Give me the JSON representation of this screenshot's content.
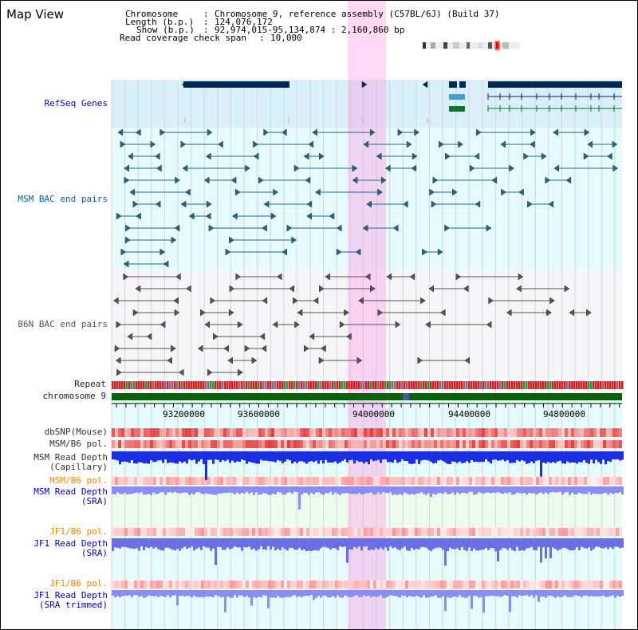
{
  "title": "Map View",
  "info": {
    "chromosome_label": "Chromosome",
    "chromosome_value": "Chromosome 9, reference assembly (C57BL/6J) (Build 37)",
    "length_label": "Length (b.p.)",
    "length_value": "124,076,172",
    "show_label": "Show (b.p.)",
    "show_value": "92,974,015-95,134,874 : 2,160,860 bp",
    "coverage_label": "Read coverage check span",
    "coverage_value": "10,000"
  },
  "tracks": {
    "refseq": "RefSeq Genes",
    "msm_bac": "MSM BAC end pairs",
    "b6n_bac": "B6N BAC end pairs",
    "repeat": "Repeat",
    "chromosome": "chromosome 9",
    "dbsnp": "dbSNP(Mouse)",
    "msm_b6_pol": "MSM/B6 pol.",
    "msm_cap_1": "MSM Read Depth",
    "msm_cap_2": "(Capillary)",
    "msm_b6_pol_sra": "MSM/B6 pol.",
    "msm_sra_1": "MSM Read Depth",
    "msm_sra_2": "(SRA)",
    "jf1_b6_pol": "JF1/B6 pol.",
    "jf1_sra_1": "JF1 Read Depth",
    "jf1_sra_2": "(SRA)",
    "jf1_b6_pol_trim": "JF1/B6 pol.",
    "jf1_trim_1": "JF1 Read Depth",
    "jf1_trim_2": "(SRA trimmed)"
  },
  "axis": {
    "ticks": [
      "93200000",
      "93600000",
      "94000000",
      "94400000",
      "94800000"
    ]
  },
  "colors": {
    "refseq_label": "#0000cc",
    "msm_label": "#005f8f",
    "b6n_label": "#555555",
    "pol_label": "#ee8800",
    "depth_label": "#0000cc",
    "highlight": "#ff99e6",
    "chrom_band": "#006600"
  }
}
